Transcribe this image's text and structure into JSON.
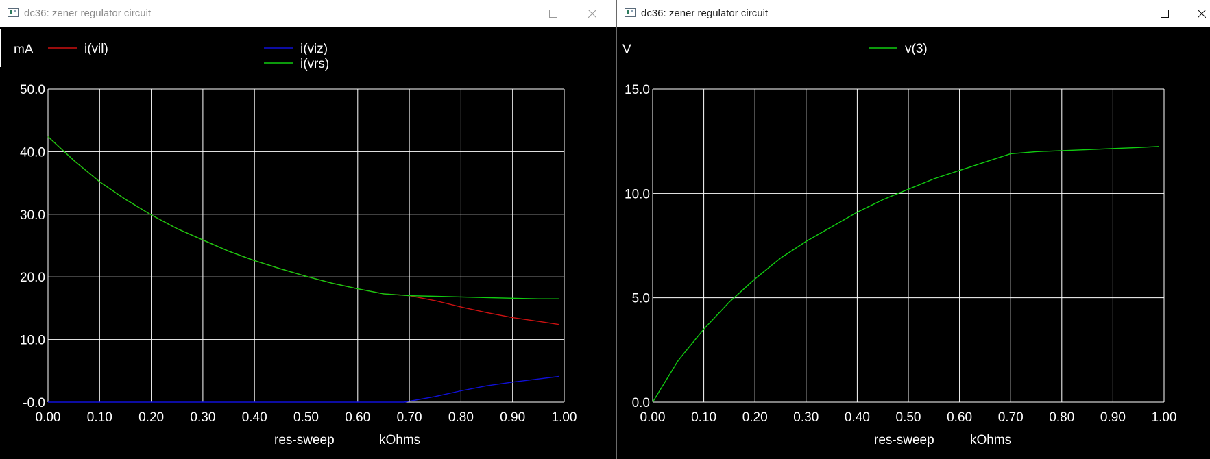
{
  "windows": [
    {
      "id": "left",
      "title": "dc36: zener regulator circuit"
    },
    {
      "id": "right",
      "title": "dc36: zener regulator circuit"
    }
  ],
  "colors": {
    "bg": "#000000",
    "grid": "#ffffff",
    "text": "#ffffff",
    "red": "#cc1111",
    "blue": "#1010d8",
    "green": "#11cc11"
  },
  "chart_data": [
    {
      "type": "line",
      "ylabel": "mA",
      "xlabel": "res-sweep",
      "xunit": "kOhms",
      "xlim": [
        0,
        1
      ],
      "ylim": [
        0,
        50
      ],
      "xticks": [
        "0.00",
        "0.10",
        "0.20",
        "0.30",
        "0.40",
        "0.50",
        "0.60",
        "0.70",
        "0.80",
        "0.90",
        "1.00"
      ],
      "yticks": [
        "-0.0",
        "10.0",
        "20.0",
        "30.0",
        "40.0",
        "50.0"
      ],
      "grid": true,
      "series": [
        {
          "name": "i(vil)",
          "color": "red",
          "x": [
            0,
            0.05,
            0.1,
            0.15,
            0.2,
            0.25,
            0.3,
            0.35,
            0.4,
            0.45,
            0.5,
            0.55,
            0.6,
            0.65,
            0.7,
            0.75,
            0.8,
            0.85,
            0.9,
            0.95,
            0.99
          ],
          "y": [
            42.4,
            38.6,
            35.2,
            32.4,
            29.9,
            27.7,
            25.9,
            24.1,
            22.6,
            21.3,
            20.1,
            19.0,
            18.1,
            17.3,
            17.0,
            16.2,
            15.2,
            14.3,
            13.5,
            12.9,
            12.4
          ]
        },
        {
          "name": "i(viz)",
          "color": "blue",
          "x": [
            0,
            0.1,
            0.2,
            0.3,
            0.4,
            0.5,
            0.6,
            0.69,
            0.75,
            0.8,
            0.85,
            0.9,
            0.95,
            0.99
          ],
          "y": [
            0,
            0,
            0,
            0,
            0,
            0,
            0,
            0,
            0.9,
            1.8,
            2.6,
            3.2,
            3.7,
            4.1
          ]
        },
        {
          "name": "i(vrs)",
          "color": "green",
          "x": [
            0,
            0.05,
            0.1,
            0.15,
            0.2,
            0.25,
            0.3,
            0.35,
            0.4,
            0.45,
            0.5,
            0.55,
            0.6,
            0.65,
            0.7,
            0.75,
            0.8,
            0.85,
            0.9,
            0.95,
            0.99
          ],
          "y": [
            42.4,
            38.6,
            35.2,
            32.4,
            29.9,
            27.7,
            25.9,
            24.1,
            22.6,
            21.3,
            20.1,
            19.0,
            18.1,
            17.3,
            17.0,
            16.9,
            16.8,
            16.7,
            16.6,
            16.5,
            16.5
          ]
        }
      ]
    },
    {
      "type": "line",
      "ylabel": "V",
      "xlabel": "res-sweep",
      "xunit": "kOhms",
      "xlim": [
        0,
        1
      ],
      "ylim": [
        0,
        15
      ],
      "xticks": [
        "0.00",
        "0.10",
        "0.20",
        "0.30",
        "0.40",
        "0.50",
        "0.60",
        "0.70",
        "0.80",
        "0.90",
        "1.00"
      ],
      "yticks": [
        "0.0",
        "5.0",
        "10.0",
        "15.0"
      ],
      "grid": true,
      "series": [
        {
          "name": "v(3)",
          "color": "green",
          "x": [
            0,
            0.05,
            0.1,
            0.15,
            0.2,
            0.25,
            0.3,
            0.35,
            0.4,
            0.45,
            0.5,
            0.55,
            0.6,
            0.65,
            0.7,
            0.75,
            0.8,
            0.85,
            0.9,
            0.95,
            0.99
          ],
          "y": [
            0,
            2.0,
            3.5,
            4.8,
            5.9,
            6.9,
            7.7,
            8.4,
            9.1,
            9.7,
            10.2,
            10.7,
            11.1,
            11.5,
            11.9,
            12.0,
            12.05,
            12.1,
            12.15,
            12.2,
            12.25
          ]
        }
      ]
    }
  ]
}
